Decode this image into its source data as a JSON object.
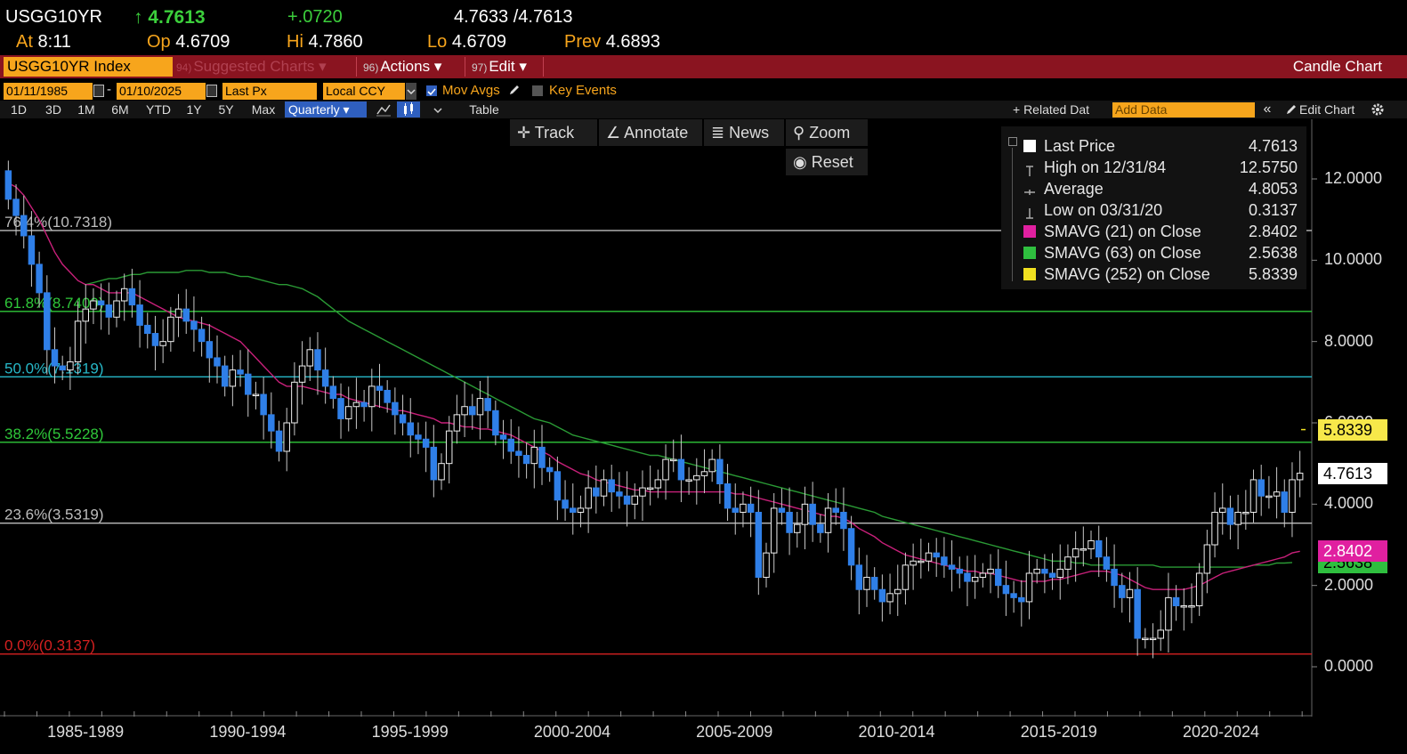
{
  "quote": {
    "ticker": "USGG10YR",
    "arrow": "↑",
    "last": "4.7613",
    "change": "+.0720",
    "bid_ask": "4.7633 /4.7613",
    "at_label": "At",
    "time": "8:11",
    "open_label": "Op",
    "open": "4.6709",
    "high_label": "Hi",
    "high": "4.7860",
    "low_label": "Lo",
    "low": "4.6709",
    "prev_label": "Prev",
    "prev": "4.6893"
  },
  "menubar": {
    "security": "USGG10YR Index",
    "suggested_num": "94)",
    "suggested": "Suggested Charts ▾",
    "actions_num": "96)",
    "actions": "Actions ▾",
    "edit_num": "97)",
    "edit": "Edit ▾",
    "title": "Candle Chart"
  },
  "controls": {
    "start_date": "01/11/1985",
    "end_date": "01/10/2025",
    "dash": "-",
    "field": "Last Px",
    "currency": "Local CCY",
    "mov_avgs": "Mov Avgs",
    "key_events": "Key Events"
  },
  "ranges": [
    "1D",
    "3D",
    "1M",
    "6M",
    "YTD",
    "1Y",
    "5Y",
    "Max"
  ],
  "toolbar": {
    "period": "Quarterly ▾",
    "table": "Table",
    "related": "+ Related Dat",
    "add_data_placeholder": "Add Data",
    "collapse": "«",
    "edit_chart": "Edit Chart"
  },
  "tools": {
    "track": "Track",
    "annotate": "Annotate",
    "news": "News",
    "zoom": "Zoom",
    "reset": "Reset"
  },
  "legend": [
    {
      "label": "Last Price",
      "value": "4.7613",
      "color": "#ffffff",
      "icon": "square"
    },
    {
      "label": "High on 12/31/84",
      "value": "12.5750",
      "color": "#cccccc",
      "icon": "high-marker-icon"
    },
    {
      "label": "Average",
      "value": "4.8053",
      "color": "#cccccc",
      "icon": "average-marker-icon"
    },
    {
      "label": "Low on 03/31/20",
      "value": "0.3137",
      "color": "#cccccc",
      "icon": "low-marker-icon"
    },
    {
      "label": "SMAVG (21)  on Close",
      "value": "2.8402",
      "color": "#e020a0",
      "icon": "square"
    },
    {
      "label": "SMAVG (63)  on Close",
      "value": "2.5638",
      "color": "#2fbf3f",
      "icon": "square"
    },
    {
      "label": "SMAVG (252)  on Close",
      "value": "5.8339",
      "color": "#f0e020",
      "icon": "square"
    }
  ],
  "chart_data": {
    "type": "candlestick",
    "ylim": [
      -0.5,
      13.0
    ],
    "y_ticks": [
      "12.0000",
      "10.0000",
      "8.0000",
      "6.0000",
      "4.0000",
      "2.0000",
      "0.0000"
    ],
    "y_tick_values": [
      12,
      10,
      8,
      6,
      4,
      2,
      0
    ],
    "x_labels": [
      "1985-1989",
      "1990-1994",
      "1995-1999",
      "2000-2004",
      "2005-2009",
      "2010-2014",
      "2015-2019",
      "2020-2024"
    ],
    "x_range": [
      1985.0,
      2025.05
    ],
    "fib_levels": [
      {
        "label": "76.4%(10.7318)",
        "value": 10.7318,
        "color": "#bdbdbd"
      },
      {
        "label": "61.8%(8.7409)",
        "value": 8.7409,
        "color": "#2fc83a"
      },
      {
        "label": "50.0%(7.1319)",
        "value": 7.1319,
        "color": "#27b8c8"
      },
      {
        "label": "38.2%(5.5228)",
        "value": 5.5228,
        "color": "#2fc83a"
      },
      {
        "label": "23.6%(3.5319)",
        "value": 3.5319,
        "color": "#bdbdbd"
      },
      {
        "label": "0.0%(0.3137)",
        "value": 0.3137,
        "color": "#d42020"
      }
    ],
    "close": [
      11.5,
      11.1,
      10.6,
      9.9,
      9.2,
      7.8,
      7.4,
      7.3,
      7.5,
      8.5,
      8.8,
      9.0,
      8.9,
      8.6,
      9.0,
      9.3,
      8.9,
      8.4,
      8.2,
      7.9,
      8.0,
      8.6,
      8.8,
      8.5,
      8.3,
      8.0,
      7.6,
      7.4,
      6.9,
      7.3,
      7.2,
      6.7,
      6.7,
      6.2,
      5.8,
      5.3,
      6.0,
      7.0,
      7.4,
      7.8,
      7.3,
      6.9,
      6.6,
      6.1,
      6.4,
      6.5,
      6.4,
      6.9,
      6.8,
      6.5,
      6.2,
      6.0,
      5.7,
      5.6,
      5.4,
      4.6,
      5.0,
      5.8,
      6.2,
      6.4,
      6.2,
      6.6,
      6.3,
      5.7,
      5.6,
      5.3,
      5.2,
      5.0,
      5.4,
      4.9,
      4.8,
      4.1,
      3.9,
      3.8,
      3.9,
      4.4,
      4.2,
      4.6,
      4.3,
      4.2,
      4.0,
      4.2,
      4.4,
      4.4,
      4.6,
      5.1,
      5.1,
      4.6,
      4.6,
      4.7,
      4.8,
      5.1,
      4.5,
      3.9,
      3.8,
      4.0,
      3.8,
      2.2,
      2.8,
      3.9,
      3.8,
      3.3,
      3.5,
      4.0,
      3.5,
      3.3,
      3.9,
      3.8,
      3.4,
      2.5,
      1.9,
      2.2,
      1.9,
      1.6,
      1.8,
      1.9,
      2.5,
      2.6,
      2.6,
      2.8,
      2.7,
      2.5,
      2.4,
      2.3,
      2.1,
      2.2,
      2.3,
      2.4,
      2.0,
      1.8,
      1.7,
      1.6,
      2.3,
      2.4,
      2.3,
      2.2,
      2.4,
      2.7,
      2.9,
      2.9,
      3.1,
      2.7,
      2.4,
      2.0,
      1.7,
      1.9,
      0.7,
      0.7,
      0.7,
      0.9,
      1.7,
      1.5,
      1.5,
      1.5,
      2.3,
      3.0,
      3.8,
      3.9,
      3.5,
      3.8,
      3.8,
      4.6,
      4.2,
      4.2,
      4.3,
      3.8,
      4.6,
      4.7613
    ],
    "sma21": [
      11.9,
      11.8,
      11.6,
      11.3,
      11.0,
      10.6,
      10.2,
      9.9,
      9.7,
      9.5,
      9.4,
      9.4,
      9.3,
      9.2,
      9.2,
      9.2,
      9.2,
      9.1,
      9.0,
      8.9,
      8.8,
      8.7,
      8.6,
      8.55,
      8.5,
      8.45,
      8.4,
      8.3,
      8.2,
      8.1,
      8.0,
      7.8,
      7.6,
      7.4,
      7.2,
      7.0,
      6.9,
      6.9,
      6.9,
      6.85,
      6.8,
      6.75,
      6.7,
      6.7,
      6.6,
      6.55,
      6.5,
      6.45,
      6.4,
      6.35,
      6.3,
      6.3,
      6.25,
      6.2,
      6.15,
      6.1,
      6.0,
      6.0,
      5.95,
      5.9,
      5.9,
      5.85,
      5.85,
      5.8,
      5.75,
      5.7,
      5.6,
      5.5,
      5.4,
      5.3,
      5.2,
      5.05,
      4.95,
      4.85,
      4.75,
      4.7,
      4.6,
      4.55,
      4.5,
      4.45,
      4.4,
      4.35,
      4.35,
      4.3,
      4.3,
      4.3,
      4.3,
      4.3,
      4.3,
      4.3,
      4.3,
      4.3,
      4.3,
      4.3,
      4.25,
      4.25,
      4.2,
      4.15,
      4.1,
      4.05,
      4.0,
      3.95,
      3.9,
      3.85,
      3.8,
      3.75,
      3.7,
      3.7,
      3.65,
      3.55,
      3.4,
      3.3,
      3.2,
      3.05,
      2.95,
      2.85,
      2.75,
      2.7,
      2.65,
      2.6,
      2.55,
      2.5,
      2.45,
      2.4,
      2.35,
      2.35,
      2.3,
      2.3,
      2.25,
      2.2,
      2.15,
      2.1,
      2.1,
      2.1,
      2.1,
      2.15,
      2.15,
      2.2,
      2.25,
      2.3,
      2.35,
      2.35,
      2.35,
      2.3,
      2.25,
      2.15,
      2.05,
      1.95,
      1.9,
      1.9,
      1.9,
      1.9,
      1.9,
      1.95,
      2.0,
      2.1,
      2.2,
      2.3,
      2.35,
      2.4,
      2.45,
      2.5,
      2.55,
      2.6,
      2.65,
      2.7,
      2.8,
      2.8402
    ],
    "sma63": [
      null,
      null,
      null,
      null,
      null,
      null,
      null,
      null,
      null,
      null,
      9.4,
      9.45,
      9.5,
      9.55,
      9.55,
      9.6,
      9.65,
      9.65,
      9.7,
      9.7,
      9.7,
      9.7,
      9.7,
      9.75,
      9.75,
      9.75,
      9.7,
      9.7,
      9.7,
      9.65,
      9.6,
      9.6,
      9.55,
      9.5,
      9.45,
      9.4,
      9.4,
      9.35,
      9.3,
      9.2,
      9.1,
      8.95,
      8.8,
      8.65,
      8.5,
      8.4,
      8.3,
      8.2,
      8.1,
      8.0,
      7.9,
      7.8,
      7.7,
      7.6,
      7.5,
      7.4,
      7.3,
      7.2,
      7.1,
      7.0,
      6.9,
      6.8,
      6.7,
      6.6,
      6.5,
      6.4,
      6.3,
      6.2,
      6.1,
      6.05,
      6.0,
      5.9,
      5.8,
      5.7,
      5.65,
      5.6,
      5.55,
      5.5,
      5.45,
      5.4,
      5.35,
      5.3,
      5.25,
      5.2,
      5.2,
      5.15,
      5.1,
      5.05,
      5.0,
      4.95,
      4.9,
      4.85,
      4.8,
      4.75,
      4.7,
      4.65,
      4.6,
      4.55,
      4.5,
      4.45,
      4.4,
      4.35,
      4.3,
      4.25,
      4.2,
      4.15,
      4.1,
      4.05,
      4.0,
      3.95,
      3.9,
      3.85,
      3.8,
      3.7,
      3.65,
      3.6,
      3.55,
      3.5,
      3.45,
      3.4,
      3.35,
      3.3,
      3.25,
      3.2,
      3.15,
      3.1,
      3.05,
      3.0,
      2.95,
      2.9,
      2.85,
      2.8,
      2.75,
      2.7,
      2.65,
      2.6,
      2.6,
      2.6,
      2.55,
      2.55,
      2.5,
      2.5,
      2.5,
      2.5,
      2.5,
      2.5,
      2.5,
      2.5,
      2.5,
      2.45,
      2.45,
      2.45,
      2.45,
      2.45,
      2.45,
      2.45,
      2.45,
      2.45,
      2.45,
      2.45,
      2.45,
      2.5,
      2.5,
      2.5,
      2.55,
      2.55,
      2.5638
    ],
    "price_tags": [
      {
        "value": 5.8339,
        "label": "5.8339",
        "bg": "#f7e84a",
        "fg": "#000000"
      },
      {
        "value": 4.7613,
        "label": "4.7613",
        "bg": "#ffffff",
        "fg": "#000000"
      },
      {
        "value": 2.5638,
        "label": "2.5638",
        "bg": "#2fbf3f",
        "fg": "#000000"
      },
      {
        "value": 2.8402,
        "label": "2.8402",
        "bg": "#e020a0",
        "fg": "#ffffff"
      }
    ]
  },
  "colors": {
    "up_candle": "#f0f0f0",
    "down_candle": "#2f7fe8",
    "sma21": "#c8207a",
    "sma63": "#2a9a35",
    "accent": "#f7a51c",
    "menubar": "#8a1420"
  }
}
